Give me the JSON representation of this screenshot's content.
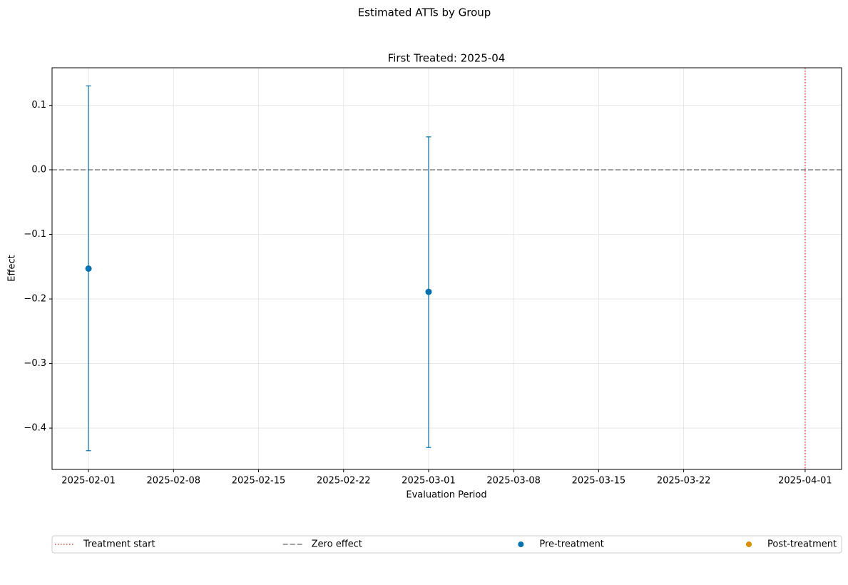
{
  "chart_data": {
    "type": "errorbar",
    "suptitle": "Estimated ATTs by Group",
    "title": "First Treated: 2025-04",
    "x_label": "Evaluation Period",
    "y_label": "Effect",
    "x": [
      "2025-02-01",
      "2025-03-01"
    ],
    "series": [
      {
        "name": "Pre-treatment",
        "color": "#0173b2",
        "values": [
          -0.153,
          -0.189
        ],
        "lower": [
          -0.435,
          -0.43
        ],
        "upper": [
          0.13,
          0.051
        ]
      },
      {
        "name": "Post-treatment",
        "color": "#de8f05",
        "values": [
          null,
          null
        ],
        "lower": [
          null,
          null
        ],
        "upper": [
          null,
          null
        ]
      }
    ],
    "vlines": [
      {
        "name": "Treatment start",
        "x": "2025-04-01",
        "color": "#e8483b",
        "style": "dotted"
      }
    ],
    "hlines": [
      {
        "name": "Zero effect",
        "y": 0,
        "color": "#808080",
        "style": "dashed"
      }
    ],
    "xlim": [
      "2025-01-29",
      "2025-04-04"
    ],
    "xticks": [
      "2025-02-01",
      "2025-02-08",
      "2025-02-15",
      "2025-02-22",
      "2025-03-01",
      "2025-03-08",
      "2025-03-15",
      "2025-03-22",
      "2025-04-01"
    ],
    "ylim": [
      -0.464,
      0.158
    ],
    "yticks": [
      {
        "value": -0.4,
        "label": "−0.4"
      },
      {
        "value": -0.3,
        "label": "−0.3"
      },
      {
        "value": -0.2,
        "label": "−0.2"
      },
      {
        "value": -0.1,
        "label": "−0.1"
      },
      {
        "value": 0,
        "label": "0.0"
      },
      0.1
    ],
    "grid": true,
    "legend": "bottom"
  }
}
